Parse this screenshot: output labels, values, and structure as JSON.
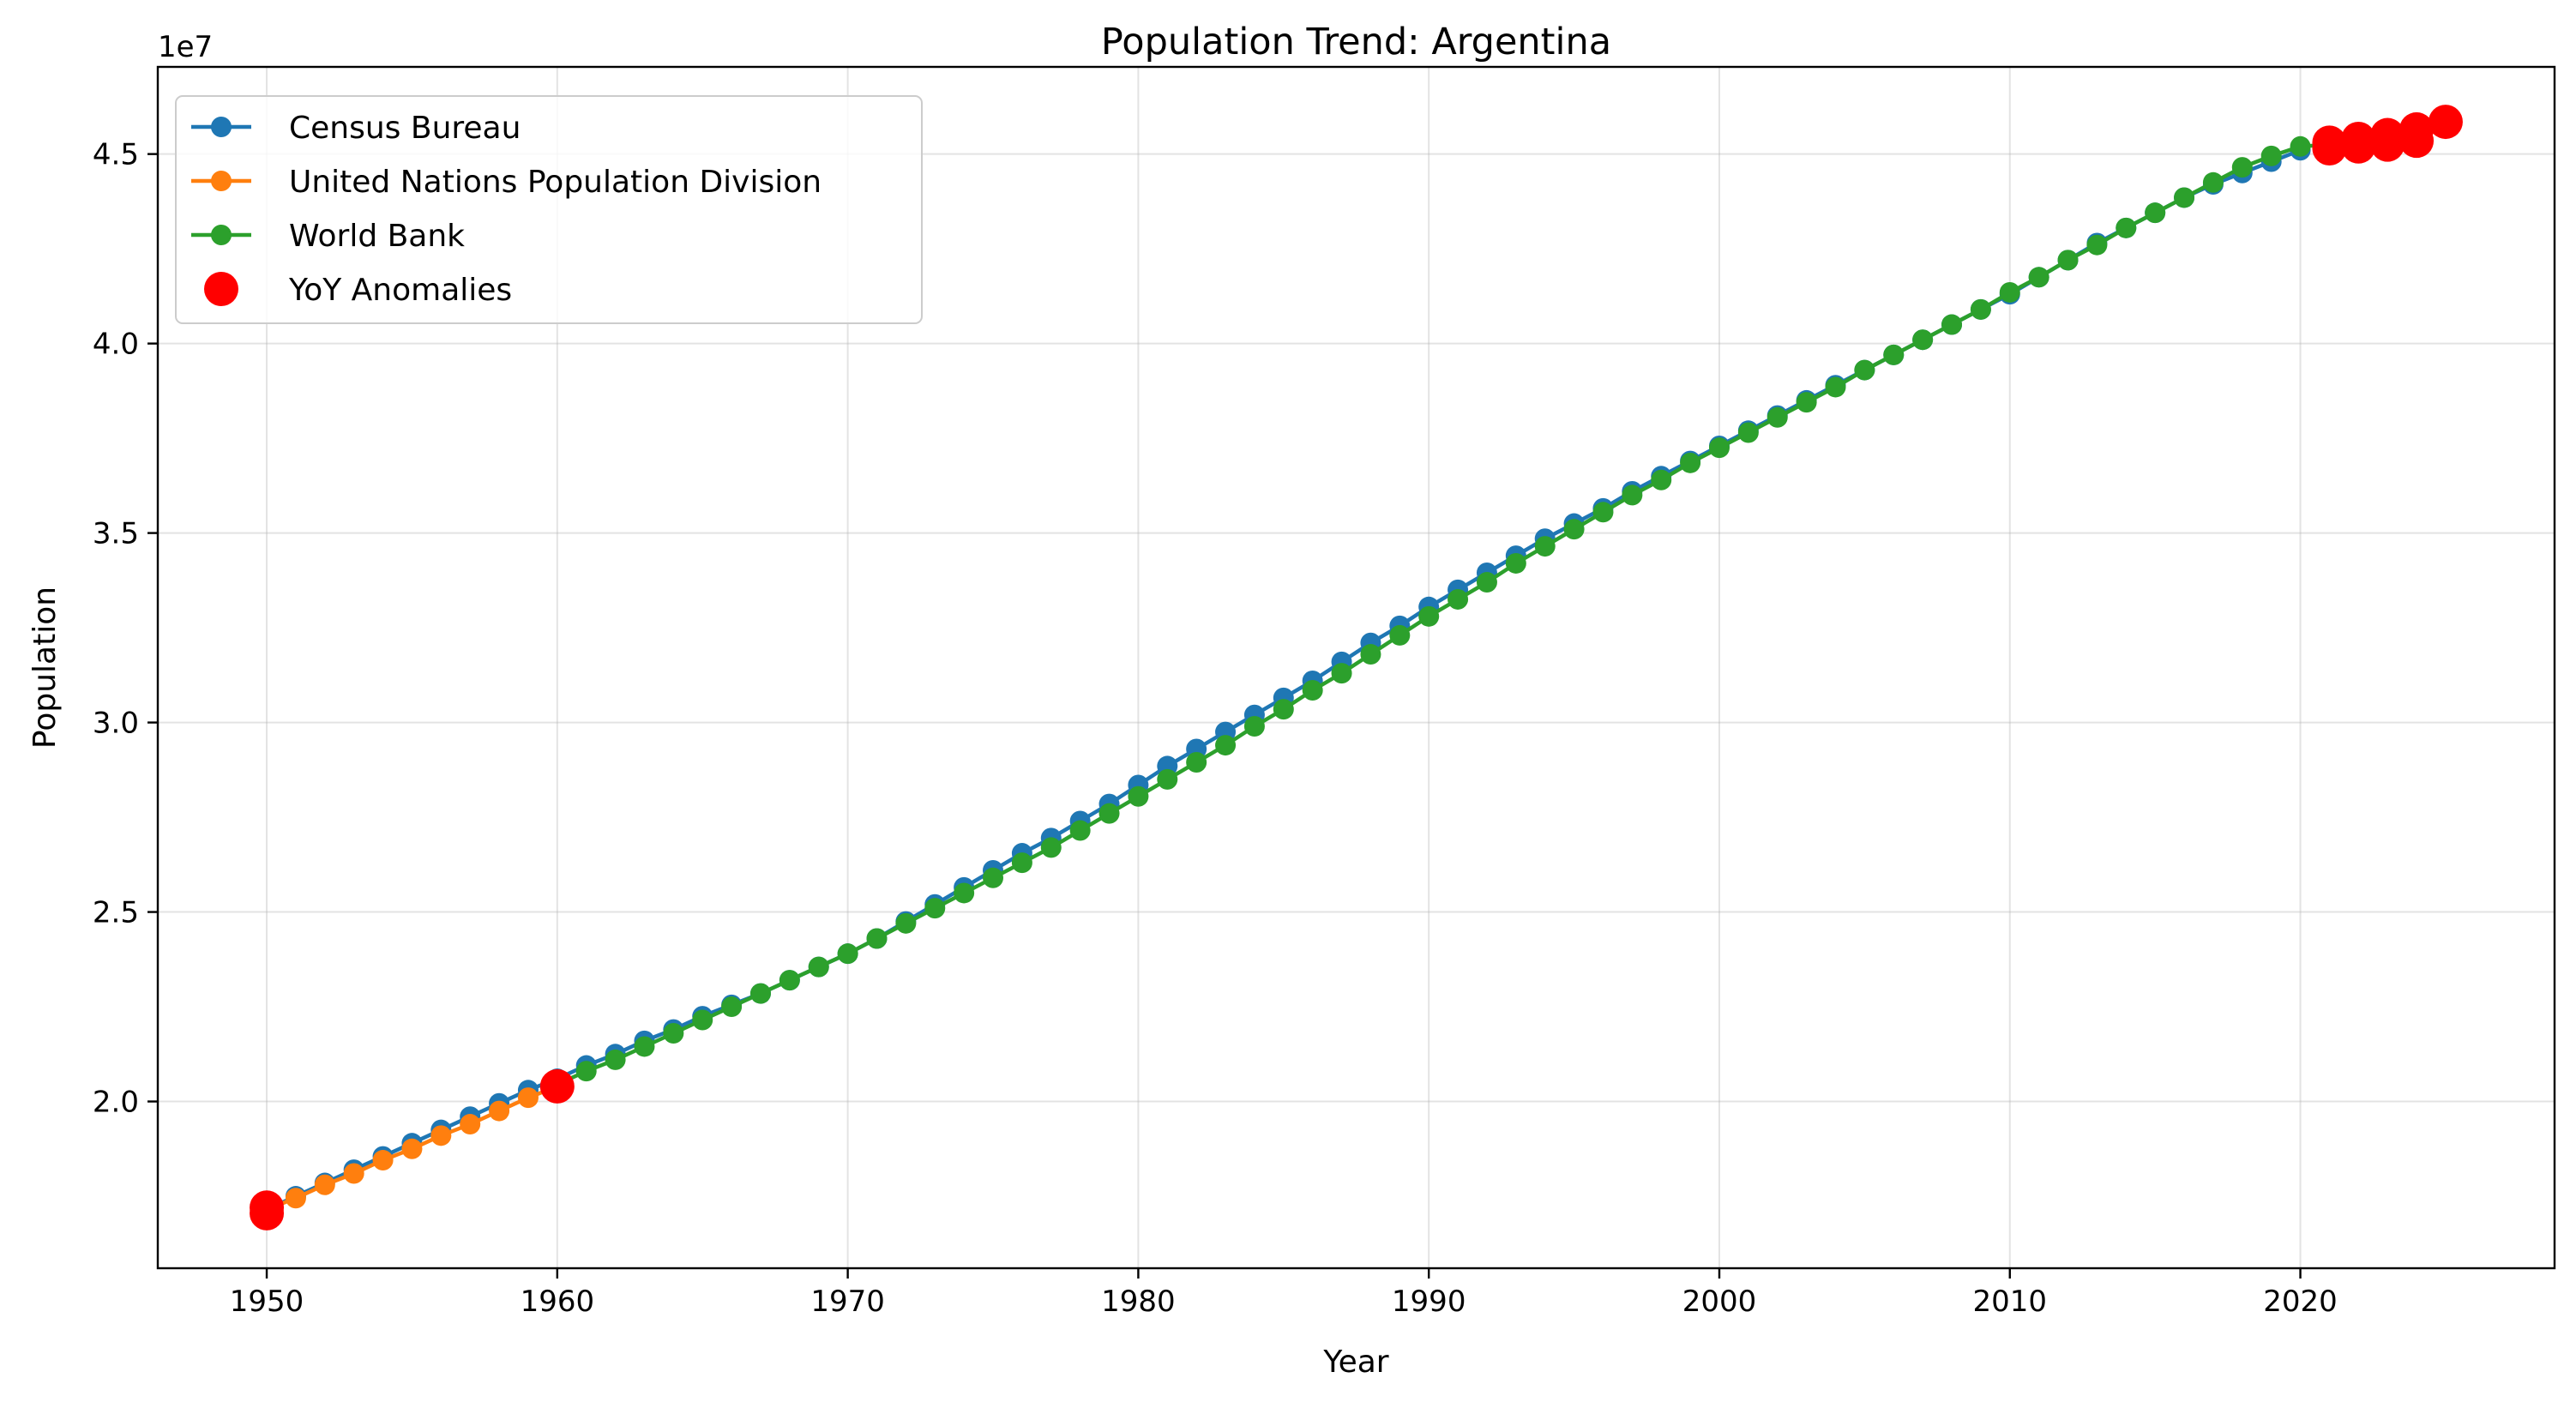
{
  "chart_data": {
    "type": "line",
    "title": "Population Trend: Argentina",
    "xlabel": "Year",
    "ylabel": "Population",
    "y_offset_label": "1e7",
    "xlim": [
      1946.25,
      2028.75
    ],
    "ylim": [
      15600000,
      47300000
    ],
    "x_ticks": [
      1950,
      1960,
      1970,
      1980,
      1990,
      2000,
      2010,
      2020
    ],
    "x_tick_labels": [
      "1950",
      "1960",
      "1970",
      "1980",
      "1990",
      "2000",
      "2010",
      "2020"
    ],
    "y_ticks": [
      20000000,
      25000000,
      30000000,
      35000000,
      40000000,
      45000000
    ],
    "y_tick_labels": [
      "2.0",
      "2.5",
      "3.0",
      "3.5",
      "4.0",
      "4.5"
    ],
    "grid": true,
    "legend_position": "top-left",
    "series": [
      {
        "name": "Census Bureau",
        "color": "#1f77b4",
        "x": [
          1950,
          1951,
          1952,
          1953,
          1954,
          1955,
          1956,
          1957,
          1958,
          1959,
          1960,
          1961,
          1962,
          1963,
          1964,
          1965,
          1966,
          1967,
          1968,
          1969,
          1970,
          1971,
          1972,
          1973,
          1974,
          1975,
          1976,
          1977,
          1978,
          1979,
          1980,
          1981,
          1982,
          1983,
          1984,
          1985,
          1986,
          1987,
          1988,
          1989,
          1990,
          1991,
          1992,
          1993,
          1994,
          1995,
          1996,
          1997,
          1998,
          1999,
          2000,
          2001,
          2002,
          2003,
          2004,
          2005,
          2006,
          2007,
          2008,
          2009,
          2010,
          2011,
          2012,
          2013,
          2014,
          2015,
          2016,
          2017,
          2018,
          2019,
          2020
        ],
        "y": [
          17150000,
          17500000,
          17850000,
          18200000,
          18550000,
          18900000,
          19250000,
          19600000,
          19950000,
          20300000,
          20600000,
          20950000,
          21250000,
          21600000,
          21900000,
          22250000,
          22550000,
          22850000,
          23200000,
          23550000,
          23900000,
          24300000,
          24750000,
          25200000,
          25650000,
          26100000,
          26550000,
          26950000,
          27400000,
          27850000,
          28350000,
          28850000,
          29300000,
          29750000,
          30200000,
          30650000,
          31100000,
          31600000,
          32100000,
          32550000,
          33050000,
          33500000,
          33950000,
          34400000,
          34850000,
          35250000,
          35650000,
          36100000,
          36500000,
          36900000,
          37300000,
          37700000,
          38100000,
          38500000,
          38900000,
          39300000,
          39700000,
          40100000,
          40500000,
          40900000,
          41300000,
          41750000,
          42200000,
          42650000,
          43050000,
          43450000,
          43850000,
          44200000,
          44500000,
          44800000,
          45100000
        ]
      },
      {
        "name": "United Nations Population Division",
        "color": "#ff7f0e",
        "x": [
          1950,
          1951,
          1952,
          1953,
          1954,
          1955,
          1956,
          1957,
          1958,
          1959,
          1960
        ],
        "y": [
          17150000,
          17450000,
          17800000,
          18100000,
          18450000,
          18750000,
          19100000,
          19400000,
          19750000,
          20100000,
          20400000
        ]
      },
      {
        "name": "World Bank",
        "color": "#2ca02c",
        "x": [
          1960,
          1961,
          1962,
          1963,
          1964,
          1965,
          1966,
          1967,
          1968,
          1969,
          1970,
          1971,
          1972,
          1973,
          1974,
          1975,
          1976,
          1977,
          1978,
          1979,
          1980,
          1981,
          1982,
          1983,
          1984,
          1985,
          1986,
          1987,
          1988,
          1989,
          1990,
          1991,
          1992,
          1993,
          1994,
          1995,
          1996,
          1997,
          1998,
          1999,
          2000,
          2001,
          2002,
          2003,
          2004,
          2005,
          2006,
          2007,
          2008,
          2009,
          2010,
          2011,
          2012,
          2013,
          2014,
          2015,
          2016,
          2017,
          2018,
          2019,
          2020,
          2021,
          2022,
          2023,
          2024
        ],
        "y": [
          20450000,
          20800000,
          21100000,
          21450000,
          21800000,
          22150000,
          22500000,
          22850000,
          23200000,
          23550000,
          23900000,
          24300000,
          24700000,
          25100000,
          25500000,
          25900000,
          26300000,
          26700000,
          27150000,
          27600000,
          28050000,
          28500000,
          28950000,
          29400000,
          29900000,
          30350000,
          30850000,
          31300000,
          31800000,
          32300000,
          32800000,
          33250000,
          33700000,
          34200000,
          34650000,
          35100000,
          35550000,
          36000000,
          36400000,
          36850000,
          37250000,
          37650000,
          38050000,
          38450000,
          38850000,
          39300000,
          39700000,
          40100000,
          40500000,
          40900000,
          41350000,
          41750000,
          42200000,
          42600000,
          43050000,
          43450000,
          43850000,
          44250000,
          44650000,
          44950000,
          45200000,
          45250000,
          45300000,
          45400000,
          45500000
        ]
      },
      {
        "name": "YoY Anomalies",
        "color": "#ff0000",
        "marker_only": true,
        "x": [
          1950,
          1950,
          1960,
          2021,
          2021,
          2022,
          2022,
          2023,
          2023,
          2024,
          2024,
          2025
        ],
        "y": [
          17050000,
          17200000,
          20400000,
          45150000,
          45300000,
          45200000,
          45400000,
          45250000,
          45500000,
          45350000,
          45650000,
          45850000
        ]
      }
    ]
  }
}
